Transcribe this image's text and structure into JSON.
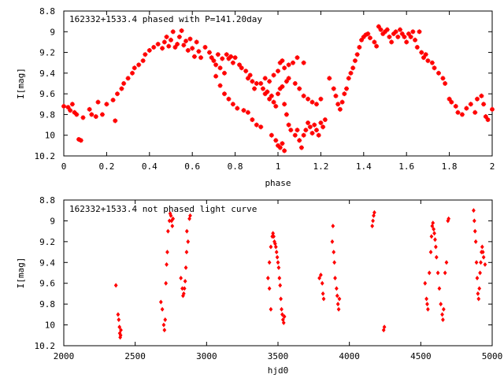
{
  "chart_data": [
    {
      "type": "scatter",
      "title": "162332+1533.4 phased with P=141.20day",
      "xlabel": "phase",
      "ylabel": "I[mag]",
      "xlim": [
        0,
        2
      ],
      "ylim": [
        10.2,
        8.8
      ],
      "y_inverted": true,
      "grid": false,
      "marker": "cross",
      "color": "#ff0000",
      "xticks": [
        0,
        0.2,
        0.4,
        0.6,
        0.8,
        1,
        1.2,
        1.4,
        1.6,
        1.8,
        2
      ],
      "xtick_labels": [
        "0",
        "0.2",
        "0.4",
        "0.6",
        "0.8",
        "1",
        "1.2",
        "1.4",
        "1.6",
        "1.8",
        "2"
      ],
      "yticks": [
        8.8,
        9,
        9.2,
        9.4,
        9.6,
        9.8,
        10,
        10.2
      ],
      "ytick_labels": [
        "8.8",
        "9",
        "9.2",
        "9.4",
        "9.6",
        "9.8",
        "10",
        "10.2"
      ],
      "points": [
        [
          0.0,
          9.72
        ],
        [
          0.02,
          9.73
        ],
        [
          0.03,
          9.76
        ],
        [
          0.04,
          9.7
        ],
        [
          0.05,
          9.78
        ],
        [
          0.06,
          9.8
        ],
        [
          0.07,
          10.04
        ],
        [
          0.08,
          10.05
        ],
        [
          0.09,
          9.83
        ],
        [
          0.12,
          9.75
        ],
        [
          0.13,
          9.8
        ],
        [
          0.15,
          9.82
        ],
        [
          0.16,
          9.68
        ],
        [
          0.18,
          9.8
        ],
        [
          0.2,
          9.7
        ],
        [
          0.23,
          9.66
        ],
        [
          0.24,
          9.86
        ],
        [
          0.25,
          9.6
        ],
        [
          0.27,
          9.55
        ],
        [
          0.28,
          9.5
        ],
        [
          0.3,
          9.45
        ],
        [
          0.32,
          9.4
        ],
        [
          0.33,
          9.35
        ],
        [
          0.35,
          9.32
        ],
        [
          0.37,
          9.28
        ],
        [
          0.38,
          9.22
        ],
        [
          0.4,
          9.18
        ],
        [
          0.42,
          9.15
        ],
        [
          0.44,
          9.12
        ],
        [
          0.46,
          9.16
        ],
        [
          0.47,
          9.1
        ],
        [
          0.48,
          9.05
        ],
        [
          0.49,
          9.14
        ],
        [
          0.5,
          9.08
        ],
        [
          0.51,
          9.0
        ],
        [
          0.52,
          9.15
        ],
        [
          0.53,
          9.12
        ],
        [
          0.54,
          9.05
        ],
        [
          0.55,
          8.99
        ],
        [
          0.56,
          9.13
        ],
        [
          0.57,
          9.09
        ],
        [
          0.58,
          9.18
        ],
        [
          0.59,
          9.07
        ],
        [
          0.6,
          9.16
        ],
        [
          0.61,
          9.24
        ],
        [
          0.62,
          9.1
        ],
        [
          0.63,
          9.19
        ],
        [
          0.64,
          9.25
        ],
        [
          0.66,
          9.15
        ],
        [
          0.68,
          9.2
        ],
        [
          0.69,
          9.25
        ],
        [
          0.7,
          9.28
        ],
        [
          0.71,
          9.32
        ],
        [
          0.72,
          9.22
        ],
        [
          0.73,
          9.35
        ],
        [
          0.74,
          9.26
        ],
        [
          0.75,
          9.4
        ],
        [
          0.76,
          9.22
        ],
        [
          0.77,
          9.26
        ],
        [
          0.78,
          9.24
        ],
        [
          0.79,
          9.3
        ],
        [
          0.8,
          9.25
        ],
        [
          0.82,
          9.32
        ],
        [
          0.83,
          9.35
        ],
        [
          0.85,
          9.38
        ],
        [
          0.86,
          9.45
        ],
        [
          0.87,
          9.42
        ],
        [
          0.88,
          9.48
        ],
        [
          0.89,
          9.55
        ],
        [
          0.9,
          9.5
        ],
        [
          0.71,
          9.43
        ],
        [
          0.73,
          9.52
        ],
        [
          0.75,
          9.6
        ],
        [
          0.77,
          9.65
        ],
        [
          0.79,
          9.7
        ],
        [
          0.81,
          9.74
        ],
        [
          0.84,
          9.76
        ],
        [
          0.86,
          9.78
        ],
        [
          0.88,
          9.85
        ],
        [
          0.9,
          9.9
        ],
        [
          0.92,
          9.92
        ],
        [
          0.93,
          9.55
        ],
        [
          0.94,
          9.6
        ],
        [
          0.95,
          9.58
        ],
        [
          0.96,
          9.65
        ],
        [
          0.97,
          9.62
        ],
        [
          0.98,
          9.68
        ],
        [
          0.99,
          9.72
        ],
        [
          1.0,
          9.6
        ],
        [
          1.01,
          9.55
        ],
        [
          1.02,
          9.53
        ],
        [
          1.04,
          9.48
        ],
        [
          1.05,
          9.45
        ],
        [
          0.92,
          9.5
        ],
        [
          0.94,
          9.45
        ],
        [
          0.96,
          9.48
        ],
        [
          0.98,
          9.42
        ],
        [
          1.0,
          9.38
        ],
        [
          1.01,
          9.3
        ],
        [
          1.02,
          9.28
        ],
        [
          1.03,
          9.35
        ],
        [
          1.05,
          9.32
        ],
        [
          1.07,
          9.3
        ],
        [
          1.09,
          9.25
        ],
        [
          1.12,
          9.3
        ],
        [
          1.08,
          9.5
        ],
        [
          1.1,
          9.55
        ],
        [
          1.12,
          9.62
        ],
        [
          1.14,
          9.65
        ],
        [
          1.16,
          9.68
        ],
        [
          1.18,
          9.7
        ],
        [
          1.2,
          9.65
        ],
        [
          1.03,
          9.7
        ],
        [
          1.04,
          9.8
        ],
        [
          1.05,
          9.9
        ],
        [
          1.06,
          9.95
        ],
        [
          1.08,
          10.0
        ],
        [
          1.09,
          9.95
        ],
        [
          1.1,
          10.05
        ],
        [
          1.11,
          10.12
        ],
        [
          1.12,
          10.0
        ],
        [
          1.13,
          9.95
        ],
        [
          1.14,
          9.88
        ],
        [
          1.15,
          9.92
        ],
        [
          1.16,
          9.98
        ],
        [
          1.17,
          9.9
        ],
        [
          1.18,
          9.95
        ],
        [
          1.19,
          10.0
        ],
        [
          1.2,
          9.88
        ],
        [
          1.21,
          9.92
        ],
        [
          1.22,
          9.85
        ],
        [
          0.97,
          10.0
        ],
        [
          0.99,
          10.05
        ],
        [
          1.0,
          10.1
        ],
        [
          1.01,
          10.12
        ],
        [
          1.02,
          10.08
        ],
        [
          1.03,
          10.15
        ],
        [
          1.24,
          9.45
        ],
        [
          1.26,
          9.55
        ],
        [
          1.27,
          9.62
        ],
        [
          1.28,
          9.7
        ],
        [
          1.29,
          9.75
        ],
        [
          1.3,
          9.68
        ],
        [
          1.31,
          9.6
        ],
        [
          1.32,
          9.55
        ],
        [
          1.33,
          9.45
        ],
        [
          1.34,
          9.4
        ],
        [
          1.35,
          9.35
        ],
        [
          1.36,
          9.28
        ],
        [
          1.37,
          9.22
        ],
        [
          1.38,
          9.15
        ],
        [
          1.39,
          9.08
        ],
        [
          1.4,
          9.05
        ],
        [
          1.41,
          9.03
        ],
        [
          1.42,
          9.02
        ],
        [
          1.43,
          9.06
        ],
        [
          1.45,
          9.1
        ],
        [
          1.46,
          9.14
        ],
        [
          1.47,
          8.95
        ],
        [
          1.48,
          8.98
        ],
        [
          1.49,
          9.02
        ],
        [
          1.5,
          9.0
        ],
        [
          1.51,
          8.98
        ],
        [
          1.52,
          9.05
        ],
        [
          1.53,
          9.1
        ],
        [
          1.54,
          9.02
        ],
        [
          1.55,
          9.0
        ],
        [
          1.56,
          9.05
        ],
        [
          1.57,
          8.98
        ],
        [
          1.58,
          9.02
        ],
        [
          1.59,
          9.05
        ],
        [
          1.6,
          9.1
        ],
        [
          1.61,
          9.02
        ],
        [
          1.62,
          9.05
        ],
        [
          1.63,
          9.0
        ],
        [
          1.64,
          9.08
        ],
        [
          1.65,
          9.15
        ],
        [
          1.66,
          9.0
        ],
        [
          1.67,
          9.2
        ],
        [
          1.68,
          9.25
        ],
        [
          1.69,
          9.22
        ],
        [
          1.7,
          9.28
        ],
        [
          1.72,
          9.3
        ],
        [
          1.73,
          9.35
        ],
        [
          1.75,
          9.4
        ],
        [
          1.77,
          9.45
        ],
        [
          1.78,
          9.5
        ],
        [
          1.8,
          9.65
        ],
        [
          1.81,
          9.68
        ],
        [
          1.83,
          9.72
        ],
        [
          1.84,
          9.78
        ],
        [
          1.86,
          9.8
        ],
        [
          1.88,
          9.74
        ],
        [
          1.9,
          9.7
        ],
        [
          1.92,
          9.78
        ],
        [
          1.93,
          9.65
        ],
        [
          1.95,
          9.62
        ],
        [
          1.96,
          9.7
        ],
        [
          1.97,
          9.82
        ],
        [
          1.98,
          9.85
        ],
        [
          2.0,
          9.75
        ]
      ]
    },
    {
      "type": "scatter",
      "title": "162332+1533.4 not phased light curve",
      "xlabel": "hjd0",
      "ylabel": "I[mag]",
      "xlim": [
        2000,
        5000
      ],
      "ylim": [
        10.2,
        8.8
      ],
      "y_inverted": true,
      "grid": false,
      "marker": "dot",
      "color": "#ff0000",
      "xticks": [
        2000,
        2500,
        3000,
        3500,
        4000,
        4500,
        5000
      ],
      "xtick_labels": [
        "2000",
        "2500",
        "3000",
        "3500",
        "4000",
        "4500",
        "5000"
      ],
      "yticks": [
        8.8,
        9,
        9.2,
        9.4,
        9.6,
        9.8,
        10,
        10.2
      ],
      "ytick_labels": [
        "8.8",
        "9",
        "9.2",
        "9.4",
        "9.6",
        "9.8",
        "10",
        "10.2"
      ],
      "points": [
        [
          2365,
          9.62
        ],
        [
          2380,
          9.9
        ],
        [
          2385,
          9.95
        ],
        [
          2390,
          10.02
        ],
        [
          2392,
          10.08
        ],
        [
          2395,
          10.12
        ],
        [
          2398,
          10.1
        ],
        [
          2400,
          10.05
        ],
        [
          2680,
          9.78
        ],
        [
          2690,
          9.85
        ],
        [
          2700,
          10.0
        ],
        [
          2705,
          10.05
        ],
        [
          2710,
          9.95
        ],
        [
          2715,
          9.6
        ],
        [
          2720,
          9.42
        ],
        [
          2725,
          9.3
        ],
        [
          2730,
          9.1
        ],
        [
          2740,
          9.0
        ],
        [
          2745,
          8.93
        ],
        [
          2750,
          8.95
        ],
        [
          2755,
          9.0
        ],
        [
          2760,
          9.05
        ],
        [
          2765,
          8.98
        ],
        [
          2820,
          9.55
        ],
        [
          2830,
          9.65
        ],
        [
          2835,
          9.72
        ],
        [
          2840,
          9.7
        ],
        [
          2845,
          9.65
        ],
        [
          2850,
          9.58
        ],
        [
          2855,
          9.45
        ],
        [
          2860,
          9.3
        ],
        [
          2862,
          9.1
        ],
        [
          2870,
          9.2
        ],
        [
          2880,
          8.98
        ],
        [
          2885,
          8.95
        ],
        [
          3430,
          9.55
        ],
        [
          3440,
          9.4
        ],
        [
          3450,
          9.25
        ],
        [
          3460,
          9.15
        ],
        [
          3465,
          9.12
        ],
        [
          3470,
          9.15
        ],
        [
          3475,
          9.2
        ],
        [
          3480,
          9.22
        ],
        [
          3485,
          9.25
        ],
        [
          3490,
          9.3
        ],
        [
          3495,
          9.35
        ],
        [
          3500,
          9.4
        ],
        [
          3505,
          9.45
        ],
        [
          3510,
          9.55
        ],
        [
          3515,
          9.62
        ],
        [
          3520,
          9.75
        ],
        [
          3525,
          9.85
        ],
        [
          3530,
          9.9
        ],
        [
          3535,
          9.95
        ],
        [
          3540,
          9.98
        ],
        [
          3545,
          9.92
        ],
        [
          3440,
          9.65
        ],
        [
          3450,
          9.85
        ],
        [
          3790,
          9.55
        ],
        [
          3800,
          9.52
        ],
        [
          3810,
          9.6
        ],
        [
          3815,
          9.7
        ],
        [
          3820,
          9.75
        ],
        [
          3880,
          9.2
        ],
        [
          3885,
          9.05
        ],
        [
          3890,
          9.3
        ],
        [
          3895,
          9.4
        ],
        [
          3900,
          9.55
        ],
        [
          3910,
          9.65
        ],
        [
          3915,
          9.72
        ],
        [
          3920,
          9.8
        ],
        [
          3925,
          9.85
        ],
        [
          3930,
          9.75
        ],
        [
          4160,
          9.05
        ],
        [
          4165,
          9.0
        ],
        [
          4170,
          8.95
        ],
        [
          4175,
          8.92
        ],
        [
          4240,
          10.05
        ],
        [
          4245,
          10.02
        ],
        [
          4530,
          9.6
        ],
        [
          4540,
          9.75
        ],
        [
          4545,
          9.8
        ],
        [
          4550,
          9.85
        ],
        [
          4560,
          9.5
        ],
        [
          4570,
          9.3
        ],
        [
          4575,
          9.15
        ],
        [
          4580,
          9.05
        ],
        [
          4585,
          9.02
        ],
        [
          4590,
          9.08
        ],
        [
          4595,
          9.12
        ],
        [
          4600,
          9.18
        ],
        [
          4605,
          9.25
        ],
        [
          4610,
          9.35
        ],
        [
          4620,
          9.5
        ],
        [
          4630,
          9.65
        ],
        [
          4640,
          9.8
        ],
        [
          4650,
          9.9
        ],
        [
          4655,
          9.95
        ],
        [
          4660,
          9.85
        ],
        [
          4670,
          9.5
        ],
        [
          4680,
          9.4
        ],
        [
          4690,
          9.0
        ],
        [
          4695,
          8.98
        ],
        [
          4870,
          8.9
        ],
        [
          4875,
          9.0
        ],
        [
          4880,
          9.1
        ],
        [
          4885,
          9.2
        ],
        [
          4890,
          9.4
        ],
        [
          4895,
          9.55
        ],
        [
          4900,
          9.7
        ],
        [
          4905,
          9.75
        ],
        [
          4910,
          9.65
        ],
        [
          4915,
          9.5
        ],
        [
          4920,
          9.4
        ],
        [
          4925,
          9.3
        ],
        [
          4930,
          9.25
        ],
        [
          4935,
          9.3
        ],
        [
          4940,
          9.35
        ],
        [
          4950,
          9.42
        ]
      ]
    }
  ]
}
